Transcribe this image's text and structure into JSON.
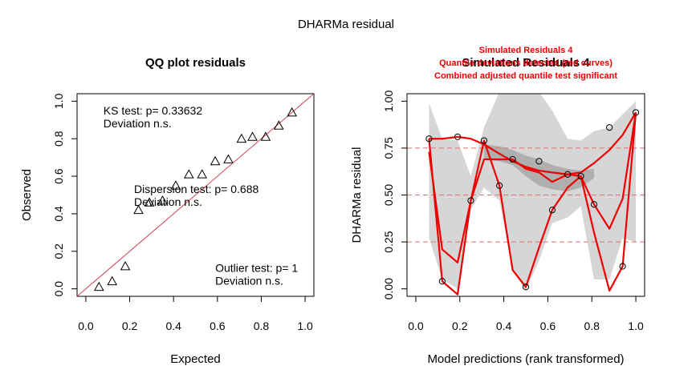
{
  "figure_title": "DHARMa residual",
  "colors": {
    "red": "#ee0000",
    "dashed": "#e07070",
    "band_light": "#d6d6d6",
    "band_dark": "#a8a8a8",
    "qq_line": "#d04050"
  },
  "chart_data": [
    {
      "type": "scatter",
      "title": "QQ plot residuals",
      "xlabel": "Expected",
      "ylabel": "Observed",
      "xlim": [
        0,
        1
      ],
      "ylim": [
        0,
        1
      ],
      "xticks": [
        "0.0",
        "0.2",
        "0.4",
        "0.6",
        "0.8",
        "1.0"
      ],
      "yticks": [
        "0.0",
        "0.2",
        "0.4",
        "0.6",
        "0.8",
        "1.0"
      ],
      "marker": "triangle",
      "points": [
        [
          0.06,
          0.01
        ],
        [
          0.12,
          0.04
        ],
        [
          0.18,
          0.12
        ],
        [
          0.24,
          0.42
        ],
        [
          0.29,
          0.46
        ],
        [
          0.35,
          0.47
        ],
        [
          0.41,
          0.55
        ],
        [
          0.47,
          0.61
        ],
        [
          0.53,
          0.61
        ],
        [
          0.59,
          0.68
        ],
        [
          0.65,
          0.69
        ],
        [
          0.71,
          0.8
        ],
        [
          0.76,
          0.81
        ],
        [
          0.82,
          0.81
        ],
        [
          0.88,
          0.87
        ],
        [
          0.94,
          0.94
        ]
      ],
      "reference_line": [
        [
          0,
          0
        ],
        [
          1,
          1
        ]
      ],
      "annotations": [
        {
          "id": "ks",
          "line1": "KS test: p= 0.33632",
          "line2": "Deviation  n.s.",
          "x": 0.08,
          "y": 0.93
        },
        {
          "id": "dispersion",
          "line1": "Dispersion test: p= 0.688",
          "line2": "Deviation  n.s.",
          "x": 0.22,
          "y": 0.51
        },
        {
          "id": "outlier",
          "line1": "Outlier test: p= 1",
          "line2": "Deviation  n.s.",
          "x": 0.59,
          "y": 0.09
        }
      ]
    },
    {
      "type": "scatter",
      "title": "Simulated Residuals 4",
      "subtitle_lines": [
        "Simulated Residuals 4",
        "Quantile deviations detected (red curves)",
        "Combined adjusted quantile test significant"
      ],
      "xlabel": "Model predictions (rank transformed)",
      "ylabel": "DHARMa residual",
      "xlim": [
        0,
        1
      ],
      "ylim": [
        0,
        1
      ],
      "xticks": [
        "0.0",
        "0.2",
        "0.4",
        "0.6",
        "0.8",
        "1.0"
      ],
      "yticks": [
        "0.00",
        "0.25",
        "0.50",
        "0.75",
        "1.00"
      ],
      "hlines": [
        0.25,
        0.5,
        0.75
      ],
      "marker": "circle",
      "points": [
        [
          0.06,
          0.8
        ],
        [
          0.12,
          0.04
        ],
        [
          0.19,
          0.81
        ],
        [
          0.25,
          0.47
        ],
        [
          0.31,
          0.79
        ],
        [
          0.38,
          0.55
        ],
        [
          0.44,
          0.69
        ],
        [
          0.5,
          0.01
        ],
        [
          0.56,
          0.68
        ],
        [
          0.62,
          0.42
        ],
        [
          0.69,
          0.61
        ],
        [
          0.75,
          0.6
        ],
        [
          0.81,
          0.45
        ],
        [
          0.88,
          0.86
        ],
        [
          0.94,
          0.12
        ],
        [
          1.0,
          0.94
        ]
      ],
      "quantile_curves": [
        [
          [
            0.06,
            0.8
          ],
          [
            0.12,
            0.8
          ],
          [
            0.19,
            0.81
          ],
          [
            0.25,
            0.8
          ],
          [
            0.31,
            0.77
          ],
          [
            0.38,
            0.72
          ],
          [
            0.44,
            0.68
          ],
          [
            0.5,
            0.65
          ],
          [
            0.56,
            0.63
          ],
          [
            0.62,
            0.62
          ],
          [
            0.69,
            0.61
          ],
          [
            0.75,
            0.62
          ],
          [
            0.81,
            0.67
          ],
          [
            0.88,
            0.74
          ],
          [
            0.94,
            0.82
          ],
          [
            1.0,
            0.94
          ]
        ],
        [
          [
            0.06,
            0.73
          ],
          [
            0.12,
            0.21
          ],
          [
            0.19,
            0.14
          ],
          [
            0.25,
            0.47
          ],
          [
            0.31,
            0.69
          ],
          [
            0.38,
            0.69
          ],
          [
            0.44,
            0.69
          ],
          [
            0.5,
            0.64
          ],
          [
            0.56,
            0.62
          ],
          [
            0.62,
            0.57
          ],
          [
            0.69,
            0.61
          ],
          [
            0.75,
            0.6
          ],
          [
            0.81,
            0.45
          ],
          [
            0.88,
            0.32
          ],
          [
            0.94,
            0.48
          ],
          [
            1.0,
            0.94
          ]
        ],
        [
          [
            0.06,
            0.8
          ],
          [
            0.12,
            0.04
          ],
          [
            0.19,
            -0.03
          ],
          [
            0.25,
            0.47
          ],
          [
            0.31,
            0.79
          ],
          [
            0.38,
            0.55
          ],
          [
            0.44,
            0.1
          ],
          [
            0.5,
            0.01
          ],
          [
            0.56,
            0.22
          ],
          [
            0.62,
            0.42
          ],
          [
            0.69,
            0.54
          ],
          [
            0.75,
            0.6
          ],
          [
            0.81,
            0.3
          ],
          [
            0.88,
            -0.01
          ],
          [
            0.94,
            0.12
          ],
          [
            1.0,
            0.94
          ]
        ]
      ],
      "bands_light": [
        {
          "x": [
            0.06,
            0.12,
            0.19,
            0.25,
            0.31,
            0.38,
            0.44,
            0.5,
            0.56,
            0.62,
            0.69,
            0.75,
            0.81,
            0.88,
            0.94,
            1.0
          ],
          "upper": [
            0.99,
            0.8,
            0.79,
            0.6,
            0.86,
            1.05,
            1.05,
            1.05,
            1.05,
            0.95,
            0.8,
            0.79,
            0.84,
            0.86,
            0.93,
            1.0
          ],
          "lower": [
            0.27,
            0.05,
            0.0,
            0.42,
            0.54,
            0.47,
            0.1,
            -0.01,
            0.15,
            0.35,
            0.38,
            0.44,
            0.05,
            0.05,
            0.27,
            0.25
          ]
        }
      ],
      "bands_dark": [
        {
          "x": [
            0.31,
            0.38,
            0.44,
            0.5,
            0.56,
            0.62,
            0.69,
            0.75,
            0.81
          ],
          "upper": [
            0.77,
            0.76,
            0.74,
            0.71,
            0.69,
            0.66,
            0.64,
            0.63,
            0.64
          ],
          "lower": [
            0.69,
            0.68,
            0.66,
            0.6,
            0.55,
            0.53,
            0.52,
            0.54,
            0.59
          ]
        }
      ]
    }
  ]
}
